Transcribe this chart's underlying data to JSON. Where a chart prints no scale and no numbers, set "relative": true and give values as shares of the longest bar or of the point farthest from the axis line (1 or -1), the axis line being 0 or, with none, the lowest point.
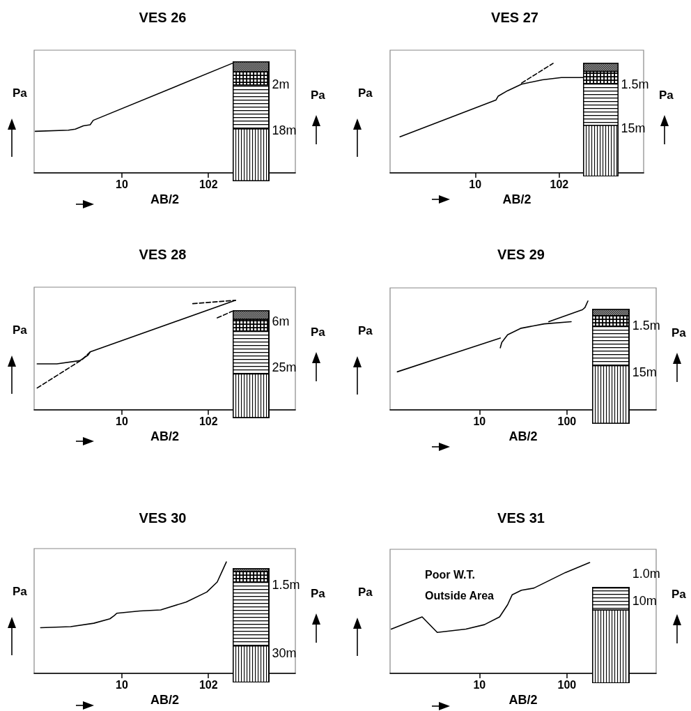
{
  "chart_data": [
    {
      "type": "line",
      "title": "VES 26",
      "xlabel": "AB/2",
      "ylabel": "Pa",
      "y2label": "Pa",
      "relative": true,
      "marker": "none",
      "log": "x",
      "xlim": [
        0.95,
        1050
      ],
      "xticks": [
        10,
        102
      ],
      "annotations": [
        "2m",
        "18m"
      ],
      "series": [
        {
          "color": "#000000",
          "line_style": "solid",
          "x": [
            0.98,
            2.38,
            2.87,
            3.56,
            4.27,
            4.64,
            193
          ],
          "values": [
            0.38,
            0.39,
            0.4,
            0.43,
            0.44,
            0.48,
            1
          ]
        }
      ]
    },
    {
      "type": "line",
      "title": "VES 27",
      "xlabel": "AB/2",
      "ylabel": "Pa",
      "y2label": "Pa",
      "relative": true,
      "marker": "none",
      "log": "x",
      "xlim": [
        0.95,
        1050
      ],
      "xticks": [
        10,
        102
      ],
      "annotations": [
        "1.5m",
        "15m"
      ],
      "series": [
        {
          "color": "#000000",
          "line_style": "solid",
          "x": [
            1.25,
            17.7,
            18.8,
            24.4,
            36,
            64,
            108,
            200
          ],
          "values": [
            0.33,
            0.665,
            0.7,
            0.75,
            0.81,
            0.85,
            0.87,
            0.87
          ]
        },
        {
          "color": "#000000",
          "line_style": "dashed",
          "x": [
            36,
            86
          ],
          "values": [
            0.82,
            1
          ]
        }
      ]
    },
    {
      "type": "line",
      "title": "VES 28",
      "xlabel": "AB/2",
      "ylabel": "Pa",
      "y2label": "Pa",
      "relative": true,
      "marker": "none",
      "log": "x",
      "xlim": [
        0.95,
        1050
      ],
      "xticks": [
        10,
        102
      ],
      "annotations": [
        "6m",
        "25m"
      ],
      "series": [
        {
          "color": "#000000",
          "line_style": "solid",
          "x": [
            1.03,
            1.75,
            3.24,
            4.03,
            4.28,
            211
          ],
          "values": [
            0.42,
            0.42,
            0.45,
            0.5,
            0.53,
            1
          ]
        },
        {
          "color": "#000000",
          "line_style": "dashed",
          "x": [
            1.03,
            3.45,
            4.28
          ],
          "values": [
            0.2,
            0.46,
            0.53
          ]
        },
        {
          "color": "#000000",
          "line_style": "dashed",
          "x": [
            67,
            211
          ],
          "values": [
            0.97,
            1
          ]
        },
        {
          "color": "#000000",
          "line_style": "dashed",
          "x": [
            129,
            193
          ],
          "values": [
            0.84,
            0.9
          ]
        }
      ]
    },
    {
      "type": "line",
      "title": "VES 29",
      "xlabel": "AB/2",
      "ylabel": "Pa",
      "y2label": "Pa",
      "relative": true,
      "marker": "none",
      "log": "x",
      "xlim": [
        0.95,
        1050
      ],
      "xticks": [
        10,
        100
      ],
      "annotations": [
        "1.5m",
        "15m"
      ],
      "series": [
        {
          "color": "#000000",
          "line_style": "solid",
          "x": [
            1.15,
            17.3
          ],
          "values": [
            0.35,
            0.66
          ]
        },
        {
          "color": "#000000",
          "line_style": "solid",
          "x": [
            17.3,
            18,
            21,
            30,
            55,
            112
          ],
          "values": [
            0.57,
            0.62,
            0.69,
            0.75,
            0.79,
            0.81
          ]
        },
        {
          "color": "#000000",
          "line_style": "solid",
          "x": [
            62,
            151,
            161,
            174
          ],
          "values": [
            0.81,
            0.92,
            0.94,
            1
          ]
        }
      ]
    },
    {
      "type": "line",
      "title": "VES 30",
      "xlabel": "AB/2",
      "ylabel": "Pa",
      "y2label": "Pa",
      "relative": true,
      "marker": "none",
      "log": "x",
      "xlim": [
        0.95,
        1050
      ],
      "xticks": [
        10,
        102
      ],
      "annotations": [
        "1.5m",
        "30m"
      ],
      "series": [
        {
          "color": "#000000",
          "line_style": "solid",
          "x": [
            1.13,
            2.53,
            4.7,
            7.25,
            8.2,
            8.73,
            16.2,
            28.3,
            56,
            97.5,
            129,
            150,
            165
          ],
          "values": [
            0.41,
            0.42,
            0.45,
            0.49,
            0.52,
            0.54,
            0.56,
            0.57,
            0.64,
            0.73,
            0.82,
            0.93,
            1
          ]
        }
      ]
    },
    {
      "type": "line",
      "title": "VES 31",
      "xlabel": "AB/2",
      "ylabel": "Pa",
      "y2label": "Pa",
      "relative": true,
      "marker": "none",
      "log": "x",
      "xlim": [
        0.95,
        1050
      ],
      "xticks": [
        10,
        100
      ],
      "annotations": [
        "Poor W.T. Outside Area",
        "1.0m",
        "10m"
      ],
      "series": [
        {
          "color": "#000000",
          "line_style": "solid",
          "x": [
            0.98,
            2.21,
            3.29,
            7.0,
            11.4,
            17,
            21,
            23.7,
            30.2,
            42,
            96,
            182
          ],
          "values": [
            0.4,
            0.51,
            0.37,
            0.4,
            0.44,
            0.51,
            0.62,
            0.71,
            0.75,
            0.77,
            0.91,
            1
          ]
        }
      ]
    }
  ]
}
